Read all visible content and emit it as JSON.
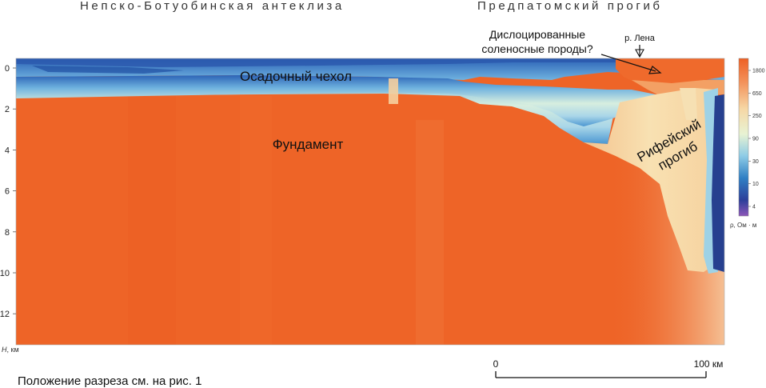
{
  "headers": {
    "left_region": "Непско-Ботуобинская антеклиза",
    "right_region": "Предпатомский прогиб"
  },
  "annotations": {
    "dislocated": [
      "Дислоцированные",
      "соленосные породы?"
    ],
    "river": "р. Лена",
    "sediment_cover": "Осадочный чехол",
    "basement": "Фундамент",
    "riphean_trough": [
      "Рифейский",
      "прогиб"
    ]
  },
  "axis": {
    "label": "H, км",
    "label_italic_part": "H",
    "label_rest": ", км",
    "ticks": [
      {
        "label": "0",
        "value": 0
      },
      {
        "label": "2",
        "value": 2
      },
      {
        "label": "4",
        "value": 4
      },
      {
        "label": "6",
        "value": 6
      },
      {
        "label": "8",
        "value": 8
      },
      {
        "label": "10",
        "value": 10
      },
      {
        "label": "12",
        "value": 12
      }
    ]
  },
  "colorbar": {
    "ticks": [
      "1800",
      "650",
      "250",
      "90",
      "30",
      "10",
      "4"
    ],
    "label": "ρ, Ом · м",
    "colors": [
      "#ee6024",
      "#f3915a",
      "#f6d7a5",
      "#e8f3d3",
      "#8dcbe6",
      "#2f7fc4",
      "#2d3f9a",
      "#8c56b8"
    ]
  },
  "scalebar": {
    "start_label": "0",
    "end_label": "100 км"
  },
  "caption": "Положение разреза см. на рис. 1"
}
